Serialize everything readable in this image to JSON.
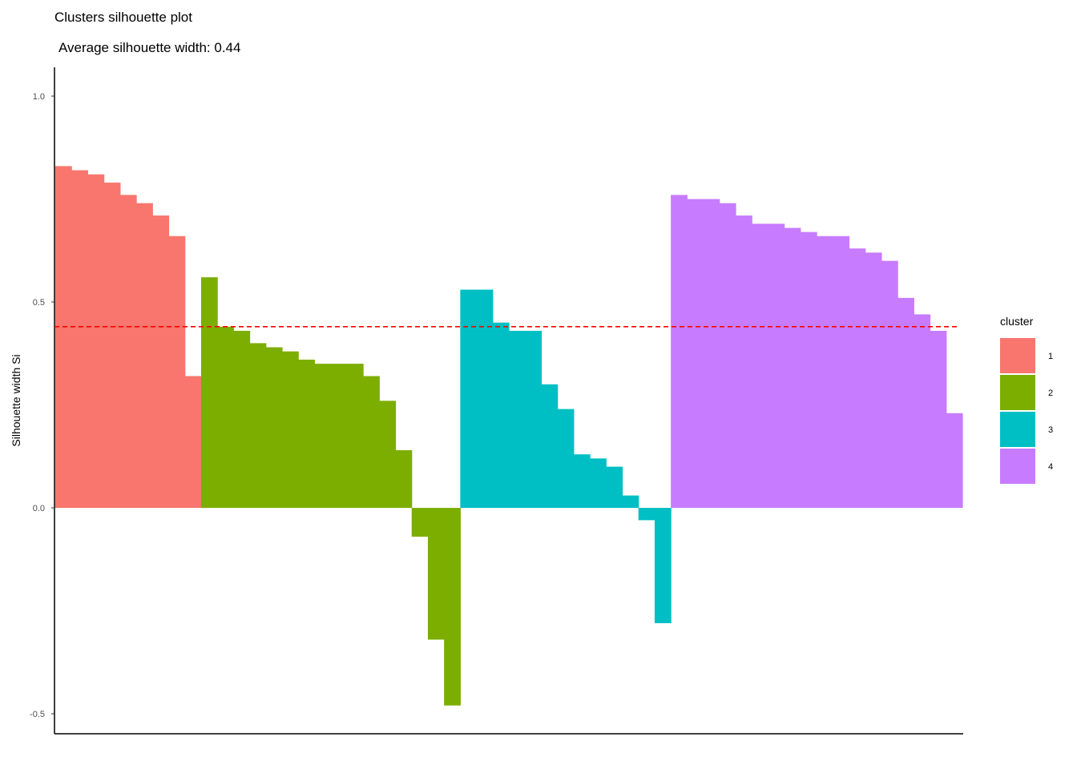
{
  "chart_data": {
    "type": "bar",
    "title": "Clusters silhouette plot",
    "subtitle": "Average silhouette width: 0.44",
    "xlabel": "",
    "ylabel": "Silhouette width Si",
    "ylim": [
      -0.55,
      1.07
    ],
    "yticks": [
      "-0.5",
      "0.0",
      "0.5",
      "1.0"
    ],
    "ytick_values": [
      -0.5,
      0.0,
      0.5,
      1.0
    ],
    "average_line": 0.44,
    "grid": false,
    "legend_position": "right",
    "legend_title": "cluster",
    "series": [
      {
        "name": "1",
        "color": "#F8766D",
        "values": [
          0.83,
          0.82,
          0.81,
          0.79,
          0.76,
          0.74,
          0.71,
          0.66,
          0.32
        ]
      },
      {
        "name": "2",
        "color": "#7CAE00",
        "values": [
          0.56,
          0.44,
          0.43,
          0.4,
          0.39,
          0.38,
          0.36,
          0.35,
          0.35,
          0.35,
          0.32,
          0.26,
          0.14,
          -0.07,
          -0.32,
          -0.48
        ]
      },
      {
        "name": "3",
        "color": "#00BFC4",
        "values": [
          0.53,
          0.53,
          0.45,
          0.43,
          0.43,
          0.3,
          0.24,
          0.13,
          0.12,
          0.1,
          0.03,
          -0.03,
          -0.28
        ]
      },
      {
        "name": "4",
        "color": "#C77CFF",
        "values": [
          0.76,
          0.75,
          0.75,
          0.74,
          0.71,
          0.69,
          0.69,
          0.68,
          0.67,
          0.66,
          0.66,
          0.63,
          0.62,
          0.6,
          0.51,
          0.47,
          0.43,
          0.23
        ]
      }
    ]
  },
  "colors": {
    "average_line": "#FF0000",
    "axis": "#000000"
  }
}
